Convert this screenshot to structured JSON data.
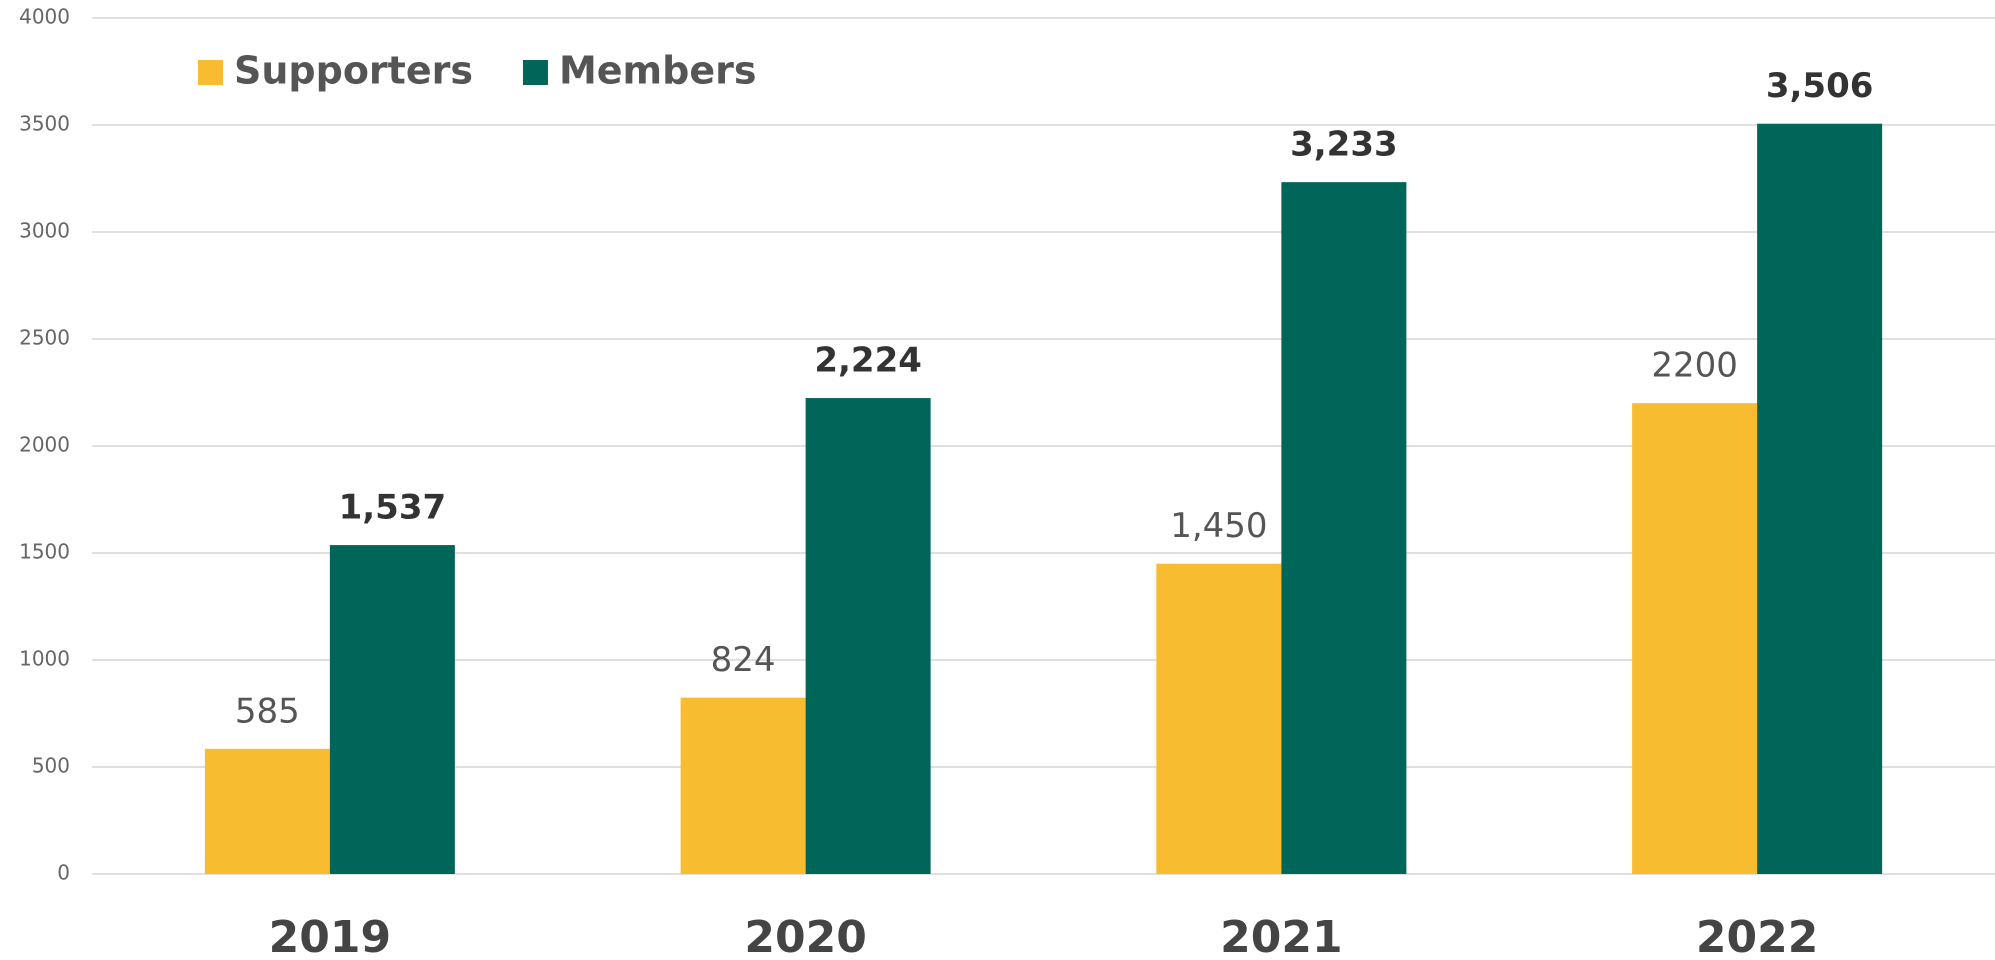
{
  "chart_data": {
    "type": "bar",
    "categories": [
      "2019",
      "2020",
      "2021",
      "2022"
    ],
    "series": [
      {
        "name": "Supporters",
        "color": "#f7bc2f",
        "values": [
          585,
          824,
          1450,
          2200
        ],
        "value_labels": [
          "585",
          "824",
          "1,450",
          "2200"
        ]
      },
      {
        "name": "Members",
        "color": "#00665a",
        "values": [
          1537,
          2224,
          3233,
          3506
        ],
        "value_labels": [
          "1,537",
          "2,224",
          "3,233",
          "3,506"
        ]
      }
    ],
    "ylim": [
      0,
      4000
    ],
    "yticks": [
      0,
      500,
      1000,
      1500,
      2000,
      2500,
      3000,
      3500,
      4000
    ],
    "grid": true,
    "legend": "top-left"
  }
}
